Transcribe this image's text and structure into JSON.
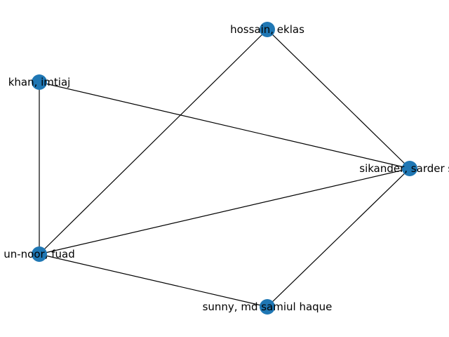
{
  "graph": {
    "type": "network",
    "node_color": "#1f77b4",
    "edge_color": "#000000",
    "nodes": [
      {
        "id": "hossain",
        "label": "hossain, eklas"
      },
      {
        "id": "khan",
        "label": "khan, imtiaj"
      },
      {
        "id": "sikander",
        "label": "sikander, sarder sh"
      },
      {
        "id": "fuad",
        "label": "un-noor, fuad"
      },
      {
        "id": "sunny",
        "label": "sunny, md samiul haque"
      }
    ],
    "edges": [
      [
        "hossain",
        "sikander"
      ],
      [
        "hossain",
        "fuad"
      ],
      [
        "khan",
        "sikander"
      ],
      [
        "khan",
        "fuad"
      ],
      [
        "fuad",
        "sikander"
      ],
      [
        "fuad",
        "sunny"
      ],
      [
        "sunny",
        "sikander"
      ]
    ]
  }
}
